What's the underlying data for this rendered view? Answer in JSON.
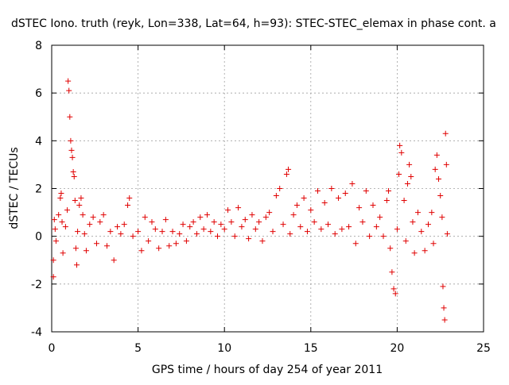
{
  "chart_data": {
    "type": "scatter",
    "title": "dSTEC Iono. truth (reyk, Lon=338, Lat=64, h=93): STEC-STEC_elemax in phase cont. a",
    "xlabel": "GPS time / hours of day 254 of year 2011",
    "ylabel": "dSTEC  / TECUs",
    "xlim": [
      0,
      25
    ],
    "ylim": [
      -4,
      8
    ],
    "x_ticks": [
      "0",
      "5",
      "10",
      "15",
      "20",
      "25"
    ],
    "y_ticks": [
      "-4",
      "-2",
      "0",
      "2",
      "4",
      "6",
      "8"
    ],
    "grid": true,
    "marker": "plus",
    "color": "#e00000",
    "series": [
      {
        "points": [
          [
            0.1,
            -1.7
          ],
          [
            0.1,
            -1.0
          ],
          [
            0.15,
            0.7
          ],
          [
            0.2,
            0.3
          ],
          [
            0.25,
            -0.2
          ],
          [
            0.4,
            0.9
          ],
          [
            0.5,
            1.6
          ],
          [
            0.55,
            1.8
          ],
          [
            0.6,
            0.6
          ],
          [
            0.65,
            -0.7
          ],
          [
            0.8,
            0.4
          ],
          [
            0.9,
            1.1
          ],
          [
            0.95,
            6.5
          ],
          [
            1.0,
            6.1
          ],
          [
            1.05,
            5.0
          ],
          [
            1.1,
            4.0
          ],
          [
            1.15,
            3.6
          ],
          [
            1.2,
            3.3
          ],
          [
            1.25,
            2.7
          ],
          [
            1.3,
            2.5
          ],
          [
            1.35,
            1.5
          ],
          [
            1.4,
            -0.5
          ],
          [
            1.45,
            -1.2
          ],
          [
            1.5,
            0.2
          ],
          [
            1.6,
            1.3
          ],
          [
            1.7,
            1.6
          ],
          [
            1.8,
            0.9
          ],
          [
            1.9,
            0.1
          ],
          [
            2.0,
            -0.6
          ],
          [
            2.2,
            0.5
          ],
          [
            2.4,
            0.8
          ],
          [
            2.6,
            -0.3
          ],
          [
            2.8,
            0.6
          ],
          [
            3.0,
            0.9
          ],
          [
            3.2,
            -0.4
          ],
          [
            3.4,
            0.2
          ],
          [
            3.6,
            -1.0
          ],
          [
            3.8,
            0.4
          ],
          [
            4.0,
            0.1
          ],
          [
            4.2,
            0.5
          ],
          [
            4.4,
            1.3
          ],
          [
            4.5,
            1.6
          ],
          [
            4.7,
            0.0
          ],
          [
            5.0,
            0.2
          ],
          [
            5.2,
            -0.6
          ],
          [
            5.4,
            0.8
          ],
          [
            5.6,
            -0.2
          ],
          [
            5.8,
            0.6
          ],
          [
            6.0,
            0.3
          ],
          [
            6.2,
            -0.5
          ],
          [
            6.4,
            0.2
          ],
          [
            6.6,
            0.7
          ],
          [
            6.8,
            -0.4
          ],
          [
            7.0,
            0.2
          ],
          [
            7.2,
            -0.3
          ],
          [
            7.4,
            0.1
          ],
          [
            7.6,
            0.5
          ],
          [
            7.8,
            -0.2
          ],
          [
            8.0,
            0.4
          ],
          [
            8.2,
            0.6
          ],
          [
            8.4,
            0.1
          ],
          [
            8.6,
            0.8
          ],
          [
            8.8,
            0.3
          ],
          [
            9.0,
            0.9
          ],
          [
            9.2,
            0.2
          ],
          [
            9.4,
            0.6
          ],
          [
            9.6,
            0.0
          ],
          [
            9.8,
            0.5
          ],
          [
            10.0,
            0.3
          ],
          [
            10.2,
            1.1
          ],
          [
            10.4,
            0.6
          ],
          [
            10.6,
            0.0
          ],
          [
            10.8,
            1.2
          ],
          [
            11.0,
            0.4
          ],
          [
            11.2,
            0.7
          ],
          [
            11.4,
            -0.1
          ],
          [
            11.6,
            0.9
          ],
          [
            11.8,
            0.3
          ],
          [
            12.0,
            0.6
          ],
          [
            12.2,
            -0.2
          ],
          [
            12.4,
            0.8
          ],
          [
            12.6,
            1.0
          ],
          [
            12.8,
            0.2
          ],
          [
            13.0,
            1.7
          ],
          [
            13.2,
            2.0
          ],
          [
            13.4,
            0.5
          ],
          [
            13.6,
            2.6
          ],
          [
            13.7,
            2.8
          ],
          [
            13.8,
            0.1
          ],
          [
            14.0,
            0.9
          ],
          [
            14.2,
            1.3
          ],
          [
            14.4,
            0.4
          ],
          [
            14.6,
            1.6
          ],
          [
            14.8,
            0.2
          ],
          [
            15.0,
            1.1
          ],
          [
            15.2,
            0.6
          ],
          [
            15.4,
            1.9
          ],
          [
            15.6,
            0.3
          ],
          [
            15.8,
            1.4
          ],
          [
            16.0,
            0.5
          ],
          [
            16.2,
            2.0
          ],
          [
            16.4,
            0.1
          ],
          [
            16.6,
            1.6
          ],
          [
            16.8,
            0.3
          ],
          [
            17.0,
            1.8
          ],
          [
            17.2,
            0.4
          ],
          [
            17.4,
            2.2
          ],
          [
            17.6,
            -0.3
          ],
          [
            17.8,
            1.2
          ],
          [
            18.0,
            0.6
          ],
          [
            18.2,
            1.9
          ],
          [
            18.4,
            0.0
          ],
          [
            18.6,
            1.3
          ],
          [
            18.8,
            0.4
          ],
          [
            19.0,
            0.8
          ],
          [
            19.2,
            0.0
          ],
          [
            19.4,
            1.5
          ],
          [
            19.5,
            1.9
          ],
          [
            19.6,
            -0.5
          ],
          [
            19.7,
            -1.5
          ],
          [
            19.8,
            -2.2
          ],
          [
            19.9,
            -2.4
          ],
          [
            20.0,
            0.3
          ],
          [
            20.1,
            2.6
          ],
          [
            20.15,
            3.8
          ],
          [
            20.25,
            3.5
          ],
          [
            20.4,
            1.5
          ],
          [
            20.5,
            -0.2
          ],
          [
            20.6,
            2.2
          ],
          [
            20.7,
            3.0
          ],
          [
            20.8,
            2.5
          ],
          [
            20.9,
            0.6
          ],
          [
            21.0,
            -0.7
          ],
          [
            21.2,
            1.0
          ],
          [
            21.4,
            0.2
          ],
          [
            21.6,
            -0.6
          ],
          [
            21.8,
            0.5
          ],
          [
            22.0,
            1.0
          ],
          [
            22.1,
            -0.3
          ],
          [
            22.2,
            2.8
          ],
          [
            22.3,
            3.4
          ],
          [
            22.4,
            2.4
          ],
          [
            22.5,
            1.7
          ],
          [
            22.6,
            0.8
          ],
          [
            22.65,
            -2.1
          ],
          [
            22.7,
            -3.0
          ],
          [
            22.75,
            -3.5
          ],
          [
            22.8,
            4.3
          ],
          [
            22.85,
            3.0
          ],
          [
            22.9,
            0.1
          ]
        ]
      }
    ]
  }
}
